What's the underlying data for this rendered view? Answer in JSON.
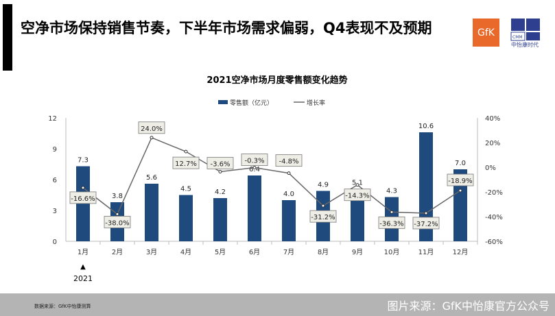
{
  "header": {
    "title": "空净市场保持销售节奏，下半年市场需求偏弱，Q4表现不及预期",
    "logo_gfk": "GfK",
    "logo_cmm": "CMM",
    "logo_cmm_name": "中怡康时代"
  },
  "chart_data": {
    "type": "bar+line",
    "title": "2021空净市场月度零售额变化趋势",
    "categories": [
      "1月",
      "2月",
      "3月",
      "4月",
      "5月",
      "6月",
      "7月",
      "8月",
      "9月",
      "10月",
      "11月",
      "12月"
    ],
    "year_annotation": "2021",
    "series": [
      {
        "name": "零售额（亿元）",
        "type": "bar",
        "axis": "left",
        "color": "#1f4a7e",
        "values": [
          7.3,
          3.8,
          5.6,
          4.5,
          4.2,
          6.4,
          4.0,
          4.9,
          5.1,
          4.3,
          10.6,
          7.0
        ]
      },
      {
        "name": "增长率",
        "type": "line",
        "axis": "right",
        "color": "#666666",
        "values": [
          -16.6,
          -38.0,
          24.0,
          12.7,
          -3.6,
          -0.3,
          -4.8,
          -31.2,
          -14.3,
          -36.3,
          -37.2,
          -18.9
        ]
      }
    ],
    "left_axis": {
      "range": [
        0,
        12
      ],
      "ticks": [
        "0",
        "3",
        "6",
        "9",
        "12"
      ]
    },
    "right_axis": {
      "range": [
        -60,
        40
      ],
      "ticks": [
        "-60%",
        "-40%",
        "-20%",
        "0%",
        "20%",
        "40%"
      ]
    },
    "legend": "top-center"
  },
  "footer": {
    "source": "数据来源：GfK中怡康测算",
    "watermark": "图片来源：GfK中怡康官方公众号"
  }
}
